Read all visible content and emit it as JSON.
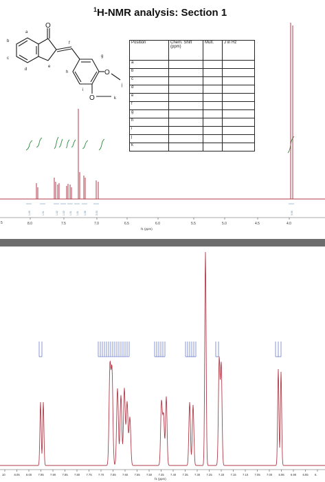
{
  "title_prefix": "1",
  "title_text": "H-NMR analysis: Section 1",
  "structure_labels": {
    "a": "a",
    "b": "b",
    "c": "c",
    "d": "d",
    "e": "e",
    "f": "f",
    "g": "g",
    "h": "h",
    "i": "i",
    "j": "j",
    "k": "k",
    "oxygen": "O"
  },
  "table": {
    "headers": [
      "Position",
      "Chem. Shift (ppm)",
      "Mult.",
      "J in Hz"
    ],
    "rows": [
      "a",
      "b",
      "c",
      "d",
      "e",
      "f",
      "g",
      "h",
      "i",
      "j",
      "k"
    ]
  },
  "top_spectrum": {
    "x_ticks": [
      "8.0",
      "7.5",
      "7.0",
      "6.5",
      "6.0",
      "5.5",
      "5.0",
      "4.5",
      "4.0"
    ],
    "edge_tick": "5",
    "x_axis_label": "f1 (ppm)",
    "integrals": [
      "1.00",
      "1.01",
      "1.02",
      "1.02",
      "1.01",
      "1.01",
      "1.06",
      "3.03",
      "3.06"
    ],
    "colors": {
      "spectrum": "#b03a48",
      "integral": "#2a8a3c"
    }
  },
  "bottom_spectrum": {
    "x_ticks": [
      "10",
      "8.05",
      "8.00",
      "7.95",
      "7.90",
      "7.85",
      "7.80",
      "7.75",
      "7.70",
      "7.65",
      "7.60",
      "7.55",
      "7.50",
      "7.45",
      "7.40",
      "7.35",
      "7.30",
      "7.25",
      "7.20",
      "7.15",
      "7.10",
      "7.05",
      "7.00",
      "6.95",
      "6.90",
      "6.85",
      "6."
    ],
    "x_axis_label": "f1 (ppm)",
    "colors": {
      "spectrum": "#b03a48",
      "peak_labels": "#3b4fb8"
    }
  }
}
